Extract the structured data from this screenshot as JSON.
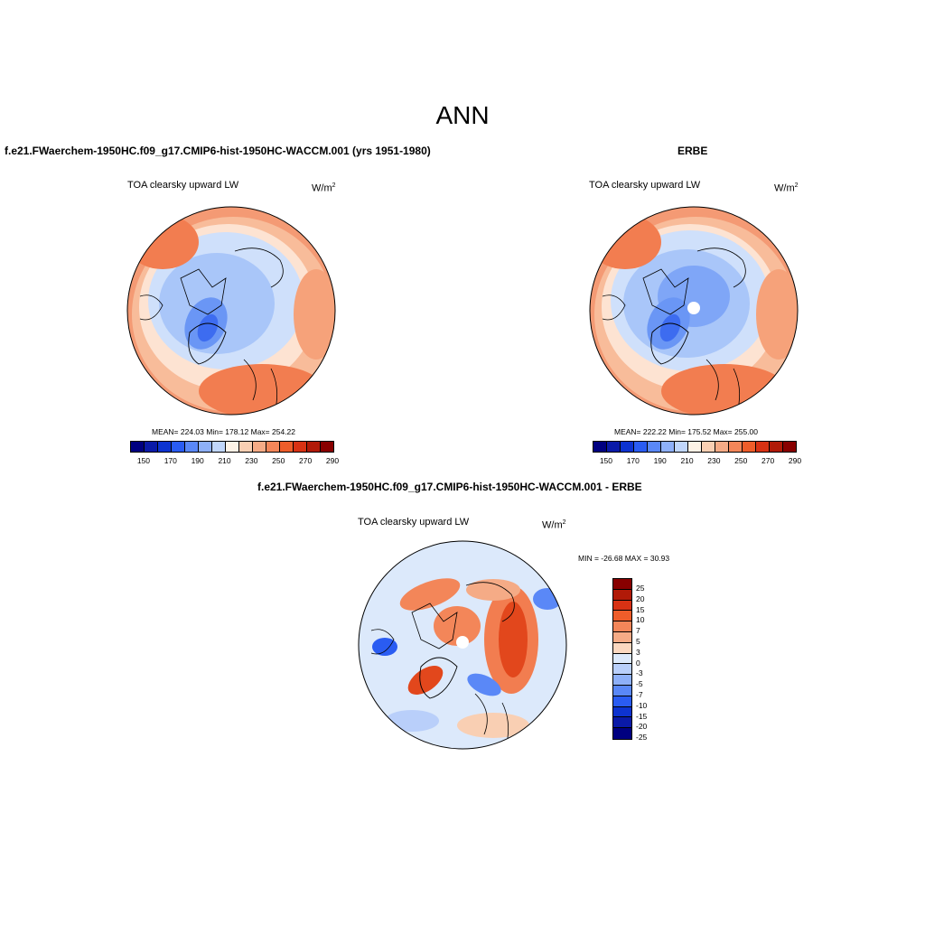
{
  "title": "ANN",
  "panel1": {
    "title": "f.e21.FWaerchem-1950HC.f09_g17.CMIP6-hist-1950HC-WACCM.001 (yrs 1951-1980)",
    "variable": "TOA clearsky upward LW",
    "units": "W/m",
    "units_exp": "2",
    "stats": "MEAN= 224.03  Min= 178.12  Max= 254.22"
  },
  "panel2": {
    "title": "ERBE",
    "variable": "TOA clearsky upward LW",
    "units": "W/m",
    "units_exp": "2",
    "stats": "MEAN= 222.22  Min= 175.52  Max= 255.00"
  },
  "panel3": {
    "title": "f.e21.FWaerchem-1950HC.f09_g17.CMIP6-hist-1950HC-WACCM.001 - ERBE",
    "variable": "TOA clearsky upward LW",
    "units": "W/m",
    "units_exp": "2",
    "stats": "MIN = -26.68 MAX =  30.93"
  },
  "abs_colorbar": {
    "colors": [
      "#000080",
      "#0a1aa8",
      "#0d33d0",
      "#2a5cf2",
      "#5a88f7",
      "#8eb0f8",
      "#c0d6fb",
      "#fdf2e6",
      "#f9cfb3",
      "#f5ab86",
      "#f38659",
      "#ee5d2a",
      "#d83214",
      "#b11a08",
      "#880000"
    ],
    "ticks": [
      "150",
      "170",
      "190",
      "210",
      "230",
      "250",
      "270",
      "290"
    ]
  },
  "diff_colorbar": {
    "colors": [
      "#880000",
      "#b11a08",
      "#d83214",
      "#ee5d2a",
      "#f38659",
      "#f5ab86",
      "#fbd8c0",
      "#dce9fb",
      "#b9cffa",
      "#8eb0f8",
      "#5a88f7",
      "#2a5cf2",
      "#0d33d0",
      "#0a1aa8",
      "#000080"
    ],
    "ticks": [
      "25",
      "20",
      "15",
      "10",
      "7",
      "5",
      "3",
      "0",
      "-3",
      "-5",
      "-7",
      "-10",
      "-15",
      "-20",
      "-25"
    ]
  }
}
